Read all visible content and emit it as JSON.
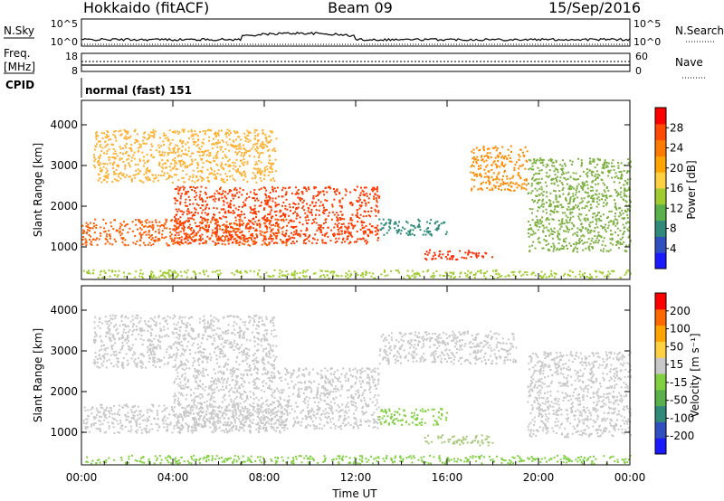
{
  "header": {
    "site": "Hokkaido (fitACF)",
    "beam": "Beam 09",
    "date": "15/Sep/2016"
  },
  "top_panels": {
    "nsky_label": "N.Sky",
    "nsky_ticks": [
      "10^5",
      "10^0"
    ],
    "nsearch_label": "N.Search",
    "nsearch_ticks": [
      "10^5",
      "10^0"
    ],
    "freq_label": "Freq.",
    "freq_unit": "[MHz]",
    "freq_ticks": [
      "18",
      "8"
    ],
    "nave_label": "Nave",
    "nave_ticks": [
      "60",
      "0"
    ],
    "cpid_label": "CPID",
    "cpid_text": "normal (fast)  151"
  },
  "chart_data": [
    {
      "type": "heatmap",
      "name": "power-panel",
      "ylabel": "Slant Range [km]",
      "yticks": [
        1000,
        2000,
        3000,
        4000
      ],
      "ylim": [
        200,
        4600
      ],
      "xlim": [
        0,
        24
      ],
      "colorbar": {
        "label": "Power [dB]",
        "ticks": [
          "4",
          "8",
          "12",
          "16",
          "20",
          "24",
          "28"
        ],
        "colors": [
          "#1a1aff",
          "#3050c0",
          "#2f8a7a",
          "#5ab04a",
          "#a0cc30",
          "#ffd040",
          "#ffa500",
          "#ff7a00",
          "#ff4a00",
          "#ff0000"
        ]
      },
      "regions": [
        {
          "t0": 0.0,
          "t1": 9.0,
          "r0": 1050,
          "r1": 1700,
          "color": "#ff5a00"
        },
        {
          "t0": 4.0,
          "t1": 13.0,
          "r0": 1100,
          "r1": 2500,
          "color": "#ff3a00"
        },
        {
          "t0": 0.5,
          "t1": 8.5,
          "r0": 2600,
          "r1": 3900,
          "color": "#ffb030"
        },
        {
          "t0": 15.0,
          "t1": 18.0,
          "r0": 700,
          "r1": 950,
          "color": "#ff2a00"
        },
        {
          "t0": 17.0,
          "t1": 19.5,
          "r0": 2400,
          "r1": 3500,
          "color": "#ff8a00"
        },
        {
          "t0": 19.5,
          "t1": 24.0,
          "r0": 900,
          "r1": 3200,
          "color": "#7cb040"
        },
        {
          "t0": 13.0,
          "t1": 16.0,
          "r0": 1300,
          "r1": 1700,
          "color": "#2f8a7a"
        },
        {
          "t0": 0.0,
          "t1": 24.0,
          "r0": 250,
          "r1": 450,
          "color": "#a0cc30"
        }
      ]
    },
    {
      "type": "heatmap",
      "name": "velocity-panel",
      "ylabel": "Slant Range [km]",
      "xlabel": "Time UT",
      "xticks": [
        "00:00",
        "04:00",
        "08:00",
        "12:00",
        "16:00",
        "20:00",
        "00:00"
      ],
      "yticks": [
        1000,
        2000,
        3000,
        4000
      ],
      "ylim": [
        200,
        4600
      ],
      "xlim": [
        0,
        24
      ],
      "colorbar": {
        "label": "Velocity [m s⁻¹]",
        "ticks": [
          "200",
          "100",
          "50",
          "15",
          "-15",
          "-50",
          "-100",
          "-200"
        ],
        "colors": [
          "#1a1aff",
          "#3050c0",
          "#2f8a7a",
          "#5ab04a",
          "#80d040",
          "#c8c8c8",
          "#ffd040",
          "#ffa500",
          "#ff6a00",
          "#ff0000"
        ]
      },
      "regions": [
        {
          "t0": 0.0,
          "t1": 9.0,
          "r0": 1000,
          "r1": 1700,
          "color": "#c8c8c8"
        },
        {
          "t0": 4.0,
          "t1": 13.0,
          "r0": 1100,
          "r1": 2600,
          "color": "#c8c8c8"
        },
        {
          "t0": 0.5,
          "t1": 8.5,
          "r0": 2600,
          "r1": 3900,
          "color": "#c8c8c8"
        },
        {
          "t0": 13.0,
          "t1": 19.0,
          "r0": 2700,
          "r1": 3500,
          "color": "#c8c8c8"
        },
        {
          "t0": 15.0,
          "t1": 18.0,
          "r0": 700,
          "r1": 950,
          "color": "#a8c878"
        },
        {
          "t0": 19.5,
          "t1": 24.0,
          "r0": 900,
          "r1": 3000,
          "color": "#c8c8c8"
        },
        {
          "t0": 13.0,
          "t1": 16.0,
          "r0": 1200,
          "r1": 1600,
          "color": "#80d040"
        },
        {
          "t0": 0.0,
          "t1": 24.0,
          "r0": 250,
          "r1": 450,
          "color": "#80d040"
        }
      ]
    }
  ]
}
